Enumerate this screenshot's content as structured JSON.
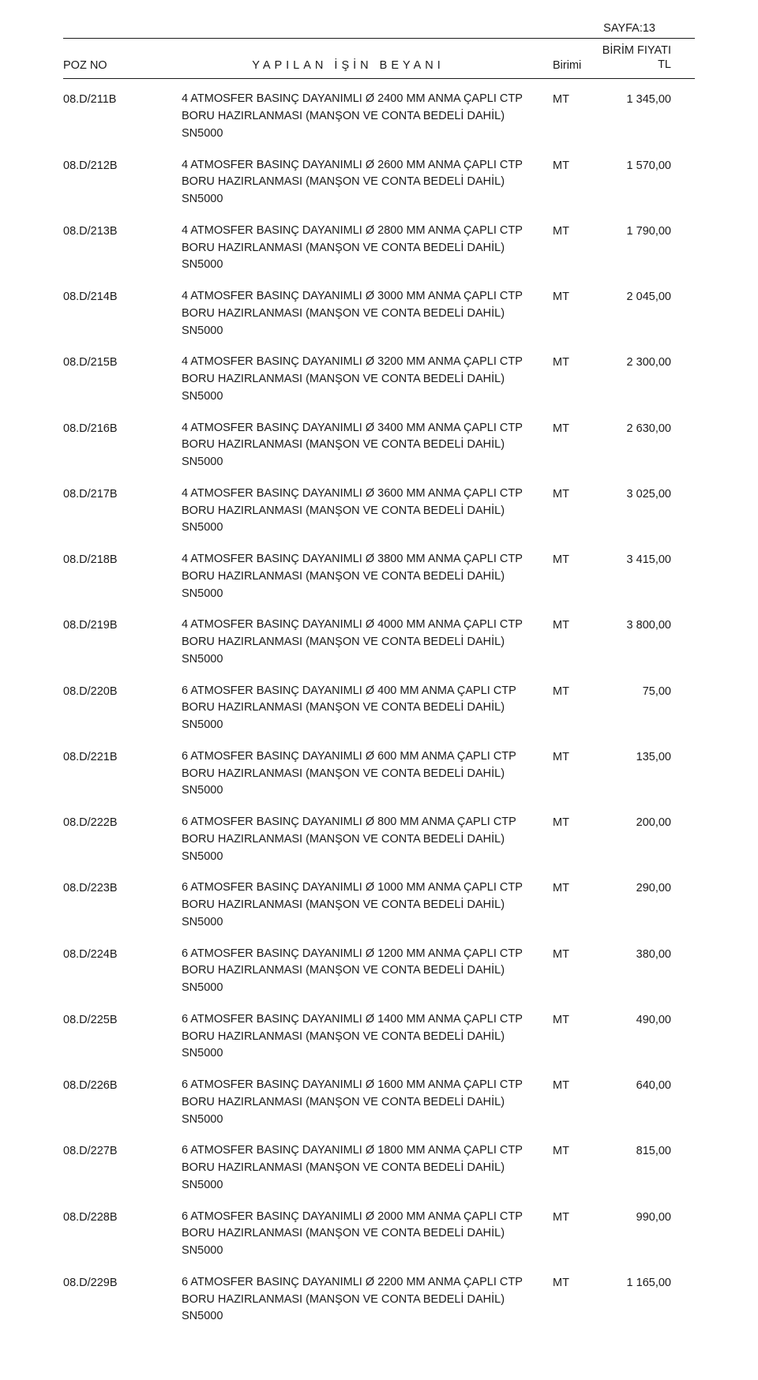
{
  "page_label": "SAYFA:13",
  "header": {
    "poz": "POZ NO",
    "desc": "YAPILAN   İŞİN  BEYANI",
    "unit": "Birimi",
    "price_top": "BİRİM FIYATI",
    "price_bottom": "TL"
  },
  "rows": [
    {
      "poz": "08.D/211B",
      "desc": "4 ATMOSFER BASINÇ DAYANIMLI Ø 2400 MM ANMA ÇAPLI CTP BORU HAZIRLANMASI (MANŞON VE CONTA BEDELİ DAHİL) SN5000",
      "unit": "MT",
      "price": "1 345,00"
    },
    {
      "poz": "08.D/212B",
      "desc": "4 ATMOSFER BASINÇ DAYANIMLI Ø 2600 MM ANMA ÇAPLI CTP BORU HAZIRLANMASI (MANŞON VE CONTA BEDELİ DAHİL) SN5000",
      "unit": "MT",
      "price": "1 570,00"
    },
    {
      "poz": "08.D/213B",
      "desc": "4 ATMOSFER BASINÇ DAYANIMLI Ø 2800 MM ANMA ÇAPLI CTP BORU HAZIRLANMASI (MANŞON VE CONTA BEDELİ DAHİL) SN5000",
      "unit": "MT",
      "price": "1 790,00"
    },
    {
      "poz": "08.D/214B",
      "desc": "4 ATMOSFER BASINÇ DAYANIMLI Ø 3000 MM ANMA ÇAPLI CTP BORU HAZIRLANMASI (MANŞON VE CONTA BEDELİ DAHİL) SN5000",
      "unit": "MT",
      "price": "2 045,00"
    },
    {
      "poz": "08.D/215B",
      "desc": "4 ATMOSFER BASINÇ DAYANIMLI Ø 3200 MM ANMA ÇAPLI CTP BORU HAZIRLANMASI (MANŞON VE CONTA BEDELİ DAHİL) SN5000",
      "unit": "MT",
      "price": "2 300,00"
    },
    {
      "poz": "08.D/216B",
      "desc": "4 ATMOSFER BASINÇ DAYANIMLI Ø 3400 MM ANMA ÇAPLI CTP BORU HAZIRLANMASI (MANŞON VE CONTA BEDELİ DAHİL) SN5000",
      "unit": "MT",
      "price": "2 630,00"
    },
    {
      "poz": "08.D/217B",
      "desc": "4 ATMOSFER BASINÇ DAYANIMLI Ø 3600 MM ANMA ÇAPLI CTP BORU HAZIRLANMASI (MANŞON VE CONTA BEDELİ DAHİL) SN5000",
      "unit": "MT",
      "price": "3 025,00"
    },
    {
      "poz": "08.D/218B",
      "desc": "4 ATMOSFER BASINÇ DAYANIMLI Ø 3800 MM ANMA ÇAPLI CTP BORU HAZIRLANMASI (MANŞON VE CONTA BEDELİ DAHİL) SN5000",
      "unit": "MT",
      "price": "3 415,00"
    },
    {
      "poz": "08.D/219B",
      "desc": "4 ATMOSFER BASINÇ DAYANIMLI Ø 4000 MM ANMA ÇAPLI CTP BORU HAZIRLANMASI (MANŞON VE CONTA BEDELİ DAHİL) SN5000",
      "unit": "MT",
      "price": "3 800,00"
    },
    {
      "poz": "08.D/220B",
      "desc": "6 ATMOSFER BASINÇ DAYANIMLI Ø 400 MM ANMA ÇAPLI CTP BORU HAZIRLANMASI (MANŞON VE CONTA BEDELİ DAHİL) SN5000",
      "unit": "MT",
      "price": "75,00"
    },
    {
      "poz": "08.D/221B",
      "desc": "6 ATMOSFER BASINÇ DAYANIMLI Ø 600 MM ANMA ÇAPLI CTP BORU HAZIRLANMASI (MANŞON VE CONTA BEDELİ DAHİL) SN5000",
      "unit": "MT",
      "price": "135,00"
    },
    {
      "poz": "08.D/222B",
      "desc": "6 ATMOSFER BASINÇ DAYANIMLI Ø 800 MM ANMA ÇAPLI CTP BORU HAZIRLANMASI (MANŞON VE CONTA BEDELİ DAHİL) SN5000",
      "unit": "MT",
      "price": "200,00"
    },
    {
      "poz": "08.D/223B",
      "desc": "6 ATMOSFER BASINÇ DAYANIMLI Ø 1000 MM ANMA ÇAPLI CTP BORU HAZIRLANMASI (MANŞON VE CONTA BEDELİ DAHİL) SN5000",
      "unit": "MT",
      "price": "290,00"
    },
    {
      "poz": "08.D/224B",
      "desc": "6 ATMOSFER BASINÇ DAYANIMLI Ø 1200 MM ANMA ÇAPLI CTP BORU HAZIRLANMASI (MANŞON VE CONTA BEDELİ DAHİL) SN5000",
      "unit": "MT",
      "price": "380,00"
    },
    {
      "poz": "08.D/225B",
      "desc": "6 ATMOSFER BASINÇ DAYANIMLI Ø 1400 MM ANMA ÇAPLI CTP BORU HAZIRLANMASI (MANŞON VE CONTA BEDELİ DAHİL) SN5000",
      "unit": "MT",
      "price": "490,00"
    },
    {
      "poz": "08.D/226B",
      "desc": "6 ATMOSFER BASINÇ DAYANIMLI Ø 1600 MM ANMA ÇAPLI CTP BORU HAZIRLANMASI (MANŞON VE CONTA BEDELİ DAHİL) SN5000",
      "unit": "MT",
      "price": "640,00"
    },
    {
      "poz": "08.D/227B",
      "desc": "6 ATMOSFER BASINÇ DAYANIMLI Ø 1800 MM ANMA ÇAPLI CTP BORU HAZIRLANMASI (MANŞON VE CONTA BEDELİ DAHİL) SN5000",
      "unit": "MT",
      "price": "815,00"
    },
    {
      "poz": "08.D/228B",
      "desc": "6 ATMOSFER BASINÇ DAYANIMLI Ø 2000 MM ANMA ÇAPLI CTP BORU HAZIRLANMASI (MANŞON VE CONTA BEDELİ DAHİL) SN5000",
      "unit": "MT",
      "price": "990,00"
    },
    {
      "poz": "08.D/229B",
      "desc": "6 ATMOSFER BASINÇ DAYANIMLI Ø 2200 MM ANMA ÇAPLI CTP BORU HAZIRLANMASI (MANŞON VE CONTA BEDELİ DAHİL) SN5000",
      "unit": "MT",
      "price": "1 165,00"
    }
  ]
}
